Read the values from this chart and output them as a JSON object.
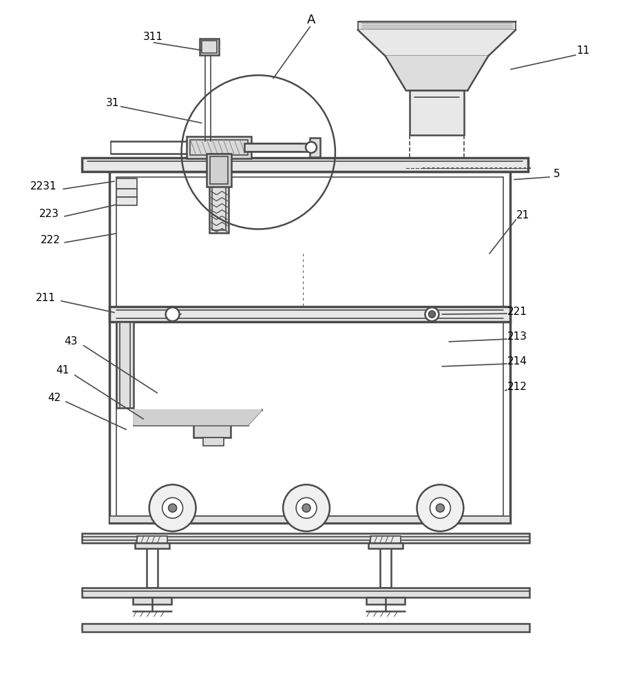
{
  "bg_color": "#ffffff",
  "lc": "#4a4a4a",
  "lc2": "#666666"
}
